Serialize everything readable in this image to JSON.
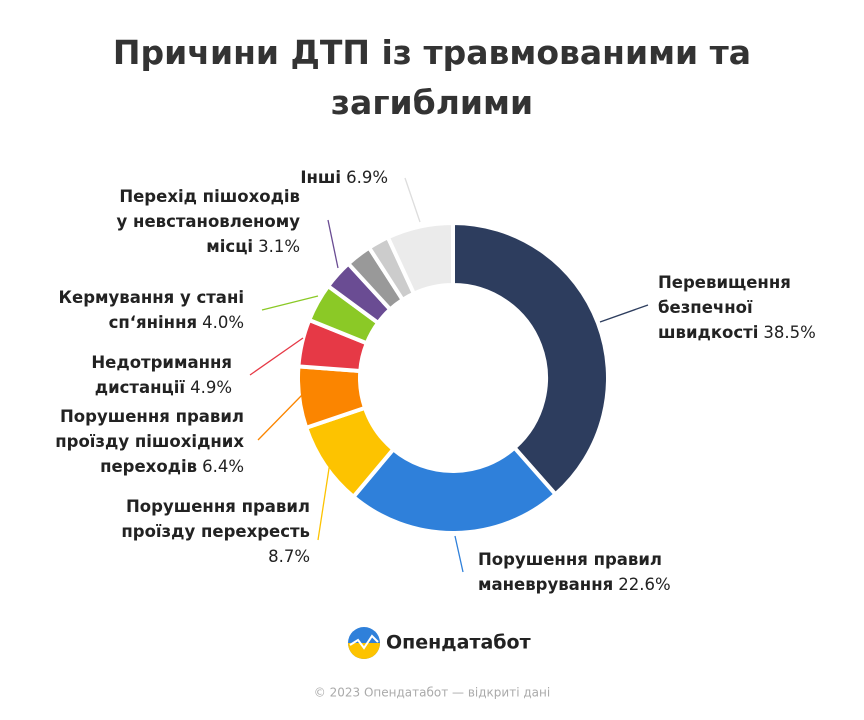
{
  "chart_data": {
    "type": "donut",
    "title": "Причини ДТП із травмованими та загиблими",
    "categories": [
      [
        "Перевищення",
        "безпечної",
        "швидкості"
      ],
      [
        "Порушення правил",
        "маневрування"
      ],
      [
        "Порушення правил",
        "проїзду перехресть"
      ],
      [
        "Порушення правил",
        "проїзду пішохідних",
        "переходів"
      ],
      [
        "Недотримання",
        "дистанції"
      ],
      [
        "Кермування у стані",
        "сп‘яніння"
      ],
      [
        "Перехід пішоходів",
        "у невстановленому",
        "місці"
      ],
      null,
      null,
      [
        "Інші"
      ]
    ],
    "values": [
      38.5,
      22.6,
      8.7,
      6.4,
      4.9,
      4.0,
      3.1,
      2.7,
      2.2,
      6.9
    ],
    "value_labels": [
      "38.5%",
      "22.6%",
      "8.7%",
      "6.4%",
      "4.9%",
      "4.0%",
      "3.1%",
      null,
      null,
      "6.9%"
    ],
    "colors": [
      "#2d3d5e",
      "#2f80da",
      "#fdc300",
      "#fb8500",
      "#e63946",
      "#8bc926",
      "#6a4c93",
      "#999999",
      "#cccccc",
      "#ebebeb"
    ]
  },
  "brand": "Опендатабот",
  "footer": "© 2023 Опендатабот — відкриті дані"
}
